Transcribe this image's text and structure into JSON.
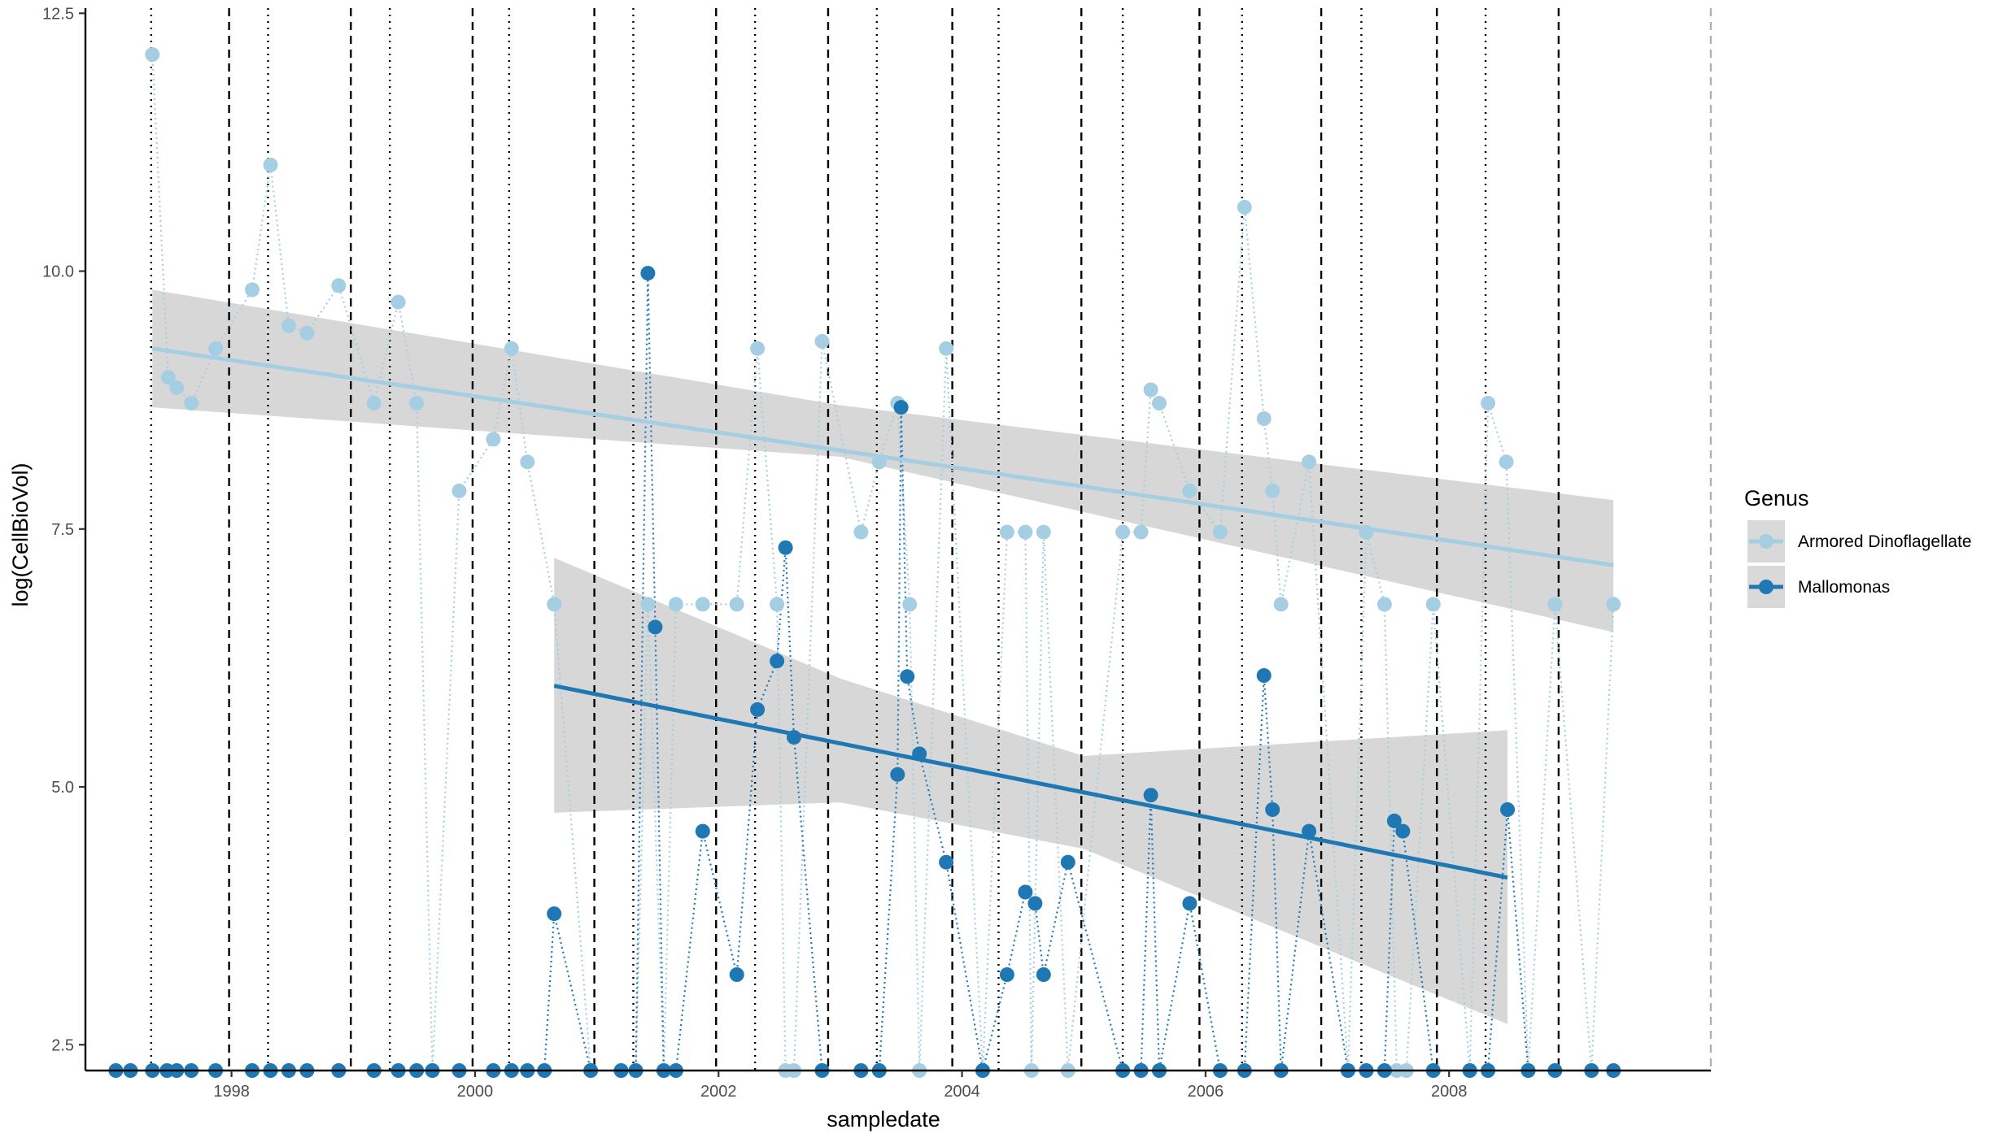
{
  "chart_data": {
    "type": "scatter",
    "title": "",
    "xlabel": "sampledate",
    "ylabel": "log(CellBioVol)",
    "xlim": [
      1996.8,
      2010.15
    ],
    "ylim": [
      2.25,
      12.55
    ],
    "x_ticks": [
      1998,
      2000,
      2002,
      2004,
      2006,
      2008
    ],
    "x_tick_labels": [
      "1998",
      "2000",
      "2002",
      "2004",
      "2006",
      "2008"
    ],
    "y_ticks": [
      2.5,
      5.0,
      7.5,
      10.0,
      12.5
    ],
    "y_tick_labels": [
      "2.5",
      "5.0",
      "7.5",
      "10.0",
      "12.5"
    ],
    "grid": false,
    "legend": {
      "title": "Genus",
      "placement": "right"
    },
    "vlines_dashed": [
      1997.98,
      1998.98,
      1999.98,
      2000.98,
      2001.98,
      2002.9,
      2003.92,
      2004.98,
      2005.95,
      2006.95,
      2007.9,
      2008.9
    ],
    "vlines_dotted": [
      1997.34,
      1998.3,
      1999.3,
      2000.28,
      2001.3,
      2002.3,
      2003.3,
      2004.3,
      2005.32,
      2006.3,
      2007.28,
      2008.3
    ],
    "series": [
      {
        "name": "Armored Dinoflagellate",
        "color": "#a6cee3",
        "points": [
          [
            1997.35,
            12.1
          ],
          [
            1997.48,
            8.97
          ],
          [
            1997.55,
            8.87
          ],
          [
            1997.67,
            8.72
          ],
          [
            1997.87,
            9.25
          ],
          [
            1998.17,
            9.82
          ],
          [
            1998.32,
            11.03
          ],
          [
            1998.47,
            9.47
          ],
          [
            1998.62,
            9.4
          ],
          [
            1998.88,
            9.86
          ],
          [
            1999.17,
            8.72
          ],
          [
            1999.37,
            9.7
          ],
          [
            1999.52,
            8.72
          ],
          [
            1999.65,
            2.25
          ],
          [
            1999.87,
            7.87
          ],
          [
            2000.15,
            8.37
          ],
          [
            2000.3,
            9.25
          ],
          [
            2000.43,
            8.15
          ],
          [
            2000.65,
            6.77
          ],
          [
            2000.95,
            2.25
          ],
          [
            2001.2,
            2.25
          ],
          [
            2001.32,
            2.25
          ],
          [
            2001.42,
            6.77
          ],
          [
            2001.55,
            2.25
          ],
          [
            2001.65,
            6.77
          ],
          [
            2001.87,
            6.77
          ],
          [
            2002.15,
            6.77
          ],
          [
            2002.32,
            9.25
          ],
          [
            2002.48,
            6.77
          ],
          [
            2002.55,
            2.25
          ],
          [
            2002.62,
            2.25
          ],
          [
            2002.85,
            9.32
          ],
          [
            2003.17,
            7.47
          ],
          [
            2003.32,
            8.15
          ],
          [
            2003.47,
            8.72
          ],
          [
            2003.57,
            6.77
          ],
          [
            2003.65,
            2.25
          ],
          [
            2003.87,
            9.25
          ],
          [
            2004.17,
            2.25
          ],
          [
            2004.37,
            7.47
          ],
          [
            2004.52,
            7.47
          ],
          [
            2004.57,
            2.25
          ],
          [
            2004.67,
            7.47
          ],
          [
            2004.87,
            2.25
          ],
          [
            2005.32,
            7.47
          ],
          [
            2005.47,
            7.47
          ],
          [
            2005.55,
            8.85
          ],
          [
            2005.62,
            8.72
          ],
          [
            2005.87,
            7.87
          ],
          [
            2006.12,
            7.47
          ],
          [
            2006.32,
            10.62
          ],
          [
            2006.48,
            8.57
          ],
          [
            2006.55,
            7.87
          ],
          [
            2006.62,
            6.77
          ],
          [
            2006.85,
            8.15
          ],
          [
            2007.17,
            2.25
          ],
          [
            2007.32,
            7.47
          ],
          [
            2007.47,
            6.77
          ],
          [
            2007.57,
            2.25
          ],
          [
            2007.65,
            2.25
          ],
          [
            2007.87,
            6.77
          ],
          [
            2008.17,
            2.25
          ],
          [
            2008.32,
            8.72
          ],
          [
            2008.47,
            8.15
          ],
          [
            2008.65,
            2.25
          ],
          [
            2008.87,
            6.77
          ],
          [
            2009.17,
            2.25
          ],
          [
            2009.35,
            6.77
          ]
        ],
        "trend": {
          "x": [
            1997.35,
            2009.35
          ],
          "y": [
            9.25,
            7.15
          ]
        },
        "band": {
          "x": [
            1997.35,
            2003.0,
            2009.35
          ],
          "lower": [
            8.68,
            8.2,
            6.5
          ],
          "upper": [
            9.82,
            8.7,
            7.78
          ]
        }
      },
      {
        "name": "Mallomonas",
        "color": "#1f78b4",
        "points": [
          [
            1997.05,
            2.25
          ],
          [
            1997.17,
            2.25
          ],
          [
            1997.35,
            2.25
          ],
          [
            1997.47,
            2.25
          ],
          [
            1997.55,
            2.25
          ],
          [
            1997.67,
            2.25
          ],
          [
            1997.87,
            2.25
          ],
          [
            1998.17,
            2.25
          ],
          [
            1998.32,
            2.25
          ],
          [
            1998.47,
            2.25
          ],
          [
            1998.62,
            2.25
          ],
          [
            1998.88,
            2.25
          ],
          [
            1999.17,
            2.25
          ],
          [
            1999.37,
            2.25
          ],
          [
            1999.52,
            2.25
          ],
          [
            1999.65,
            2.25
          ],
          [
            1999.87,
            2.25
          ],
          [
            2000.15,
            2.25
          ],
          [
            2000.3,
            2.25
          ],
          [
            2000.43,
            2.25
          ],
          [
            2000.57,
            2.25
          ],
          [
            2000.65,
            3.77
          ],
          [
            2000.95,
            2.25
          ],
          [
            2001.2,
            2.25
          ],
          [
            2001.32,
            2.25
          ],
          [
            2001.42,
            9.98
          ],
          [
            2001.48,
            6.55
          ],
          [
            2001.55,
            2.25
          ],
          [
            2001.65,
            2.25
          ],
          [
            2001.87,
            4.57
          ],
          [
            2002.15,
            3.18
          ],
          [
            2002.32,
            5.75
          ],
          [
            2002.48,
            6.22
          ],
          [
            2002.55,
            7.32
          ],
          [
            2002.62,
            5.48
          ],
          [
            2002.85,
            2.25
          ],
          [
            2003.17,
            2.25
          ],
          [
            2003.32,
            2.25
          ],
          [
            2003.47,
            5.12
          ],
          [
            2003.5,
            8.68
          ],
          [
            2003.55,
            6.07
          ],
          [
            2003.65,
            5.32
          ],
          [
            2003.87,
            4.27
          ],
          [
            2004.17,
            2.25
          ],
          [
            2004.37,
            3.18
          ],
          [
            2004.52,
            3.98
          ],
          [
            2004.6,
            3.87
          ],
          [
            2004.67,
            3.18
          ],
          [
            2004.87,
            4.27
          ],
          [
            2005.32,
            2.25
          ],
          [
            2005.47,
            2.25
          ],
          [
            2005.55,
            4.92
          ],
          [
            2005.62,
            2.25
          ],
          [
            2005.87,
            3.87
          ],
          [
            2006.12,
            2.25
          ],
          [
            2006.32,
            2.25
          ],
          [
            2006.48,
            6.08
          ],
          [
            2006.55,
            4.78
          ],
          [
            2006.62,
            2.25
          ],
          [
            2006.85,
            4.57
          ],
          [
            2007.17,
            2.25
          ],
          [
            2007.32,
            2.25
          ],
          [
            2007.47,
            2.25
          ],
          [
            2007.55,
            4.67
          ],
          [
            2007.62,
            4.57
          ],
          [
            2007.87,
            2.25
          ],
          [
            2008.17,
            2.25
          ],
          [
            2008.32,
            2.25
          ],
          [
            2008.48,
            4.78
          ],
          [
            2008.65,
            2.25
          ],
          [
            2008.87,
            2.25
          ],
          [
            2009.17,
            2.25
          ],
          [
            2009.35,
            2.25
          ]
        ],
        "trend": {
          "x": [
            2000.65,
            2008.48
          ],
          "y": [
            5.98,
            4.12
          ]
        },
        "band": {
          "x": [
            2000.65,
            2003.0,
            2005.0,
            2008.48
          ],
          "lower": [
            4.75,
            4.85,
            4.4,
            2.7
          ],
          "upper": [
            7.22,
            6.05,
            5.3,
            5.55
          ]
        }
      }
    ]
  }
}
